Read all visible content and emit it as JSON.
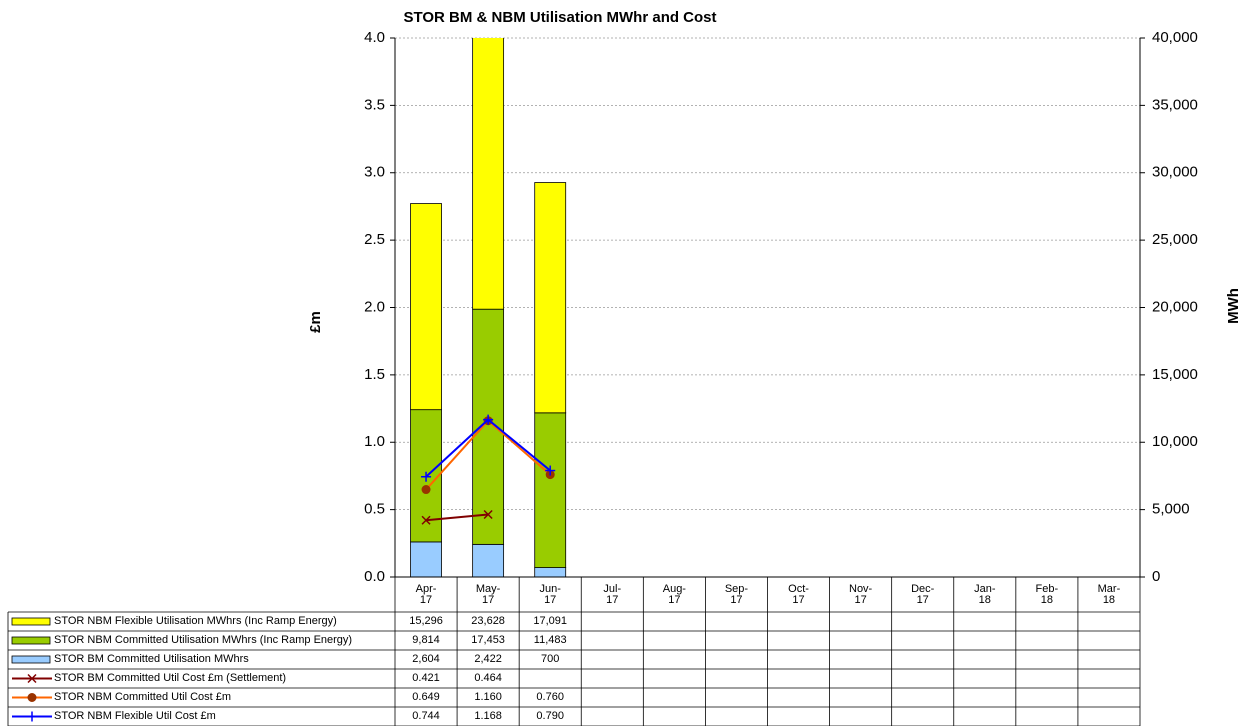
{
  "chart_data": {
    "type": "bar-line",
    "title": "STOR BM & NBM Utilisation MWhr and Cost",
    "y_label": "£m",
    "y2_label": "MWh",
    "categories": [
      "Apr-17",
      "May-17",
      "Jun-17",
      "Jul-17",
      "Aug-17",
      "Sep-17",
      "Oct-17",
      "Nov-17",
      "Dec-17",
      "Jan-18",
      "Feb-18",
      "Mar-18"
    ],
    "ylim": [
      0,
      4
    ],
    "yticks": [
      {
        "value": 0,
        "label": "0.0"
      },
      {
        "value": 0.5,
        "label": "0.5"
      },
      {
        "value": 1,
        "label": "1.0"
      },
      {
        "value": 1.5,
        "label": "1.5"
      },
      {
        "value": 2,
        "label": "2.0"
      },
      {
        "value": 2.5,
        "label": "2.5"
      },
      {
        "value": 3,
        "label": "3.0"
      },
      {
        "value": 3.5,
        "label": "3.5"
      },
      {
        "value": 4,
        "label": "4.0"
      }
    ],
    "y2lim": [
      0,
      40000
    ],
    "y2ticks": [
      0,
      {
        "value": 5000,
        "label": "5,000"
      },
      {
        "value": 10000,
        "label": "10,000"
      },
      {
        "value": 15000,
        "label": "15,000"
      },
      {
        "value": 20000,
        "label": "20,000"
      },
      {
        "value": 25000,
        "label": "25,000"
      },
      {
        "value": 30000,
        "label": "30,000"
      },
      {
        "value": 35000,
        "label": "35,000"
      },
      {
        "value": 40000,
        "label": "40,000"
      }
    ],
    "grid": true,
    "series": [
      {
        "name": "STOR NBM Flexible Utilisation MWhrs (Inc Ramp Energy)",
        "kind": "bar",
        "axis": "y2",
        "color": "#ffff00",
        "values": [
          15296,
          23628,
          17091,
          null,
          null,
          null,
          null,
          null,
          null,
          null,
          null,
          null
        ],
        "value_labels": [
          "15,296",
          "23,628",
          "17,091",
          null,
          null,
          null,
          null,
          null,
          null,
          null,
          null,
          null
        ]
      },
      {
        "name": "STOR NBM Committed Utilisation MWhrs (Inc Ramp Energy)",
        "kind": "bar",
        "axis": "y2",
        "color": "#99cc00",
        "values": [
          9814,
          17453,
          11483,
          null,
          null,
          null,
          null,
          null,
          null,
          null,
          null,
          null
        ],
        "value_labels": [
          "9,814",
          "17,453",
          "11,483",
          null,
          null,
          null,
          null,
          null,
          null,
          null,
          null,
          null
        ]
      },
      {
        "name": "STOR BM  Committed Utilisation MWhrs",
        "kind": "bar",
        "axis": "y2",
        "color": "#99ccff",
        "values": [
          2604,
          2422,
          700,
          null,
          null,
          null,
          null,
          null,
          null,
          null,
          null,
          null
        ],
        "value_labels": [
          "2,604",
          "2,422",
          "700",
          null,
          null,
          null,
          null,
          null,
          null,
          null,
          null,
          null
        ]
      },
      {
        "name": "STOR BM  Committed Util Cost £m (Settlement)",
        "kind": "line",
        "marker": "x",
        "color": "#800000",
        "values": [
          0.421,
          0.464,
          null,
          null,
          null,
          null,
          null,
          null,
          null,
          null,
          null,
          null
        ],
        "value_labels": [
          "0.421",
          "0.464",
          null,
          null,
          null,
          null,
          null,
          null,
          null,
          null,
          null,
          null
        ]
      },
      {
        "name": "STOR NBM Committed Util Cost £m",
        "kind": "line",
        "marker": "circle",
        "color": "#ff6600",
        "values": [
          0.649,
          1.16,
          0.76,
          null,
          null,
          null,
          null,
          null,
          null,
          null,
          null,
          null
        ],
        "value_labels": [
          "0.649",
          "1.160",
          "0.760",
          null,
          null,
          null,
          null,
          null,
          null,
          null,
          null,
          null
        ]
      },
      {
        "name": "STOR NBM Flexible Util Cost £m",
        "kind": "line",
        "marker": "plus",
        "color": "#0000ff",
        "values": [
          0.744,
          1.168,
          0.79,
          null,
          null,
          null,
          null,
          null,
          null,
          null,
          null,
          null
        ],
        "value_labels": [
          "0.744",
          "1.168",
          "0.790",
          null,
          null,
          null,
          null,
          null,
          null,
          null,
          null,
          null
        ]
      }
    ]
  }
}
